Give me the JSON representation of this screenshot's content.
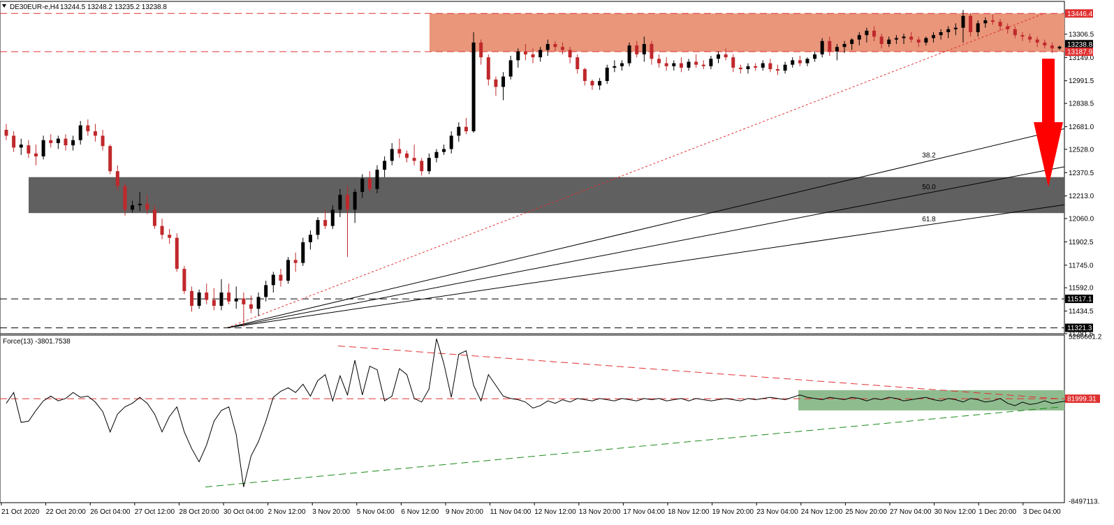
{
  "header": {
    "symbol_label": "DE30EUR-e,H4",
    "ohlc": "13244.5 13248.2 13235.2 13238.8"
  },
  "indicator": {
    "label": "Force(13) -3801.7538"
  },
  "colors": {
    "bull_candle": "#000000",
    "bear_candle": "#c0282b",
    "resistance_zone": "#e9967a",
    "support_zone": "#606060",
    "force_zone": "#8fbc8f",
    "arrow": "#ff0000",
    "dashed_red": "#e03030",
    "dashed_green": "#1a8a1a"
  },
  "chart_data": [
    {
      "type": "candlestick",
      "yaxis_ticks": [
        "13306.5",
        "13149.0",
        "12991.5",
        "12838.5",
        "12681.0",
        "12528.0",
        "12370.5",
        "12213.0",
        "12060.0",
        "11902.5",
        "11745.0",
        "11592.0",
        "11434.5",
        "11281.5"
      ],
      "ylim": [
        11281.5,
        13528.0
      ],
      "price_tags": [
        {
          "label": "13446.4",
          "value": 13446.4,
          "style": "red"
        },
        {
          "label": "13238.8",
          "value": 13238.8,
          "style": "black"
        },
        {
          "label": "13187.9",
          "value": 13187.9,
          "style": "red"
        },
        {
          "label": "11517.1",
          "value": 11517.1,
          "style": "black"
        },
        {
          "label": "11321.3",
          "value": 11321.3,
          "style": "black"
        }
      ],
      "xaxis_labels": [
        "21 Oct 2020",
        "22 Oct 20:00",
        "26 Oct 04:00",
        "27 Oct 12:00",
        "28 Oct 20:00",
        "30 Oct 04:00",
        "2 Nov 12:00",
        "3 Nov 20:00",
        "5 Nov 04:00",
        "6 Nov 12:00",
        "9 Nov 20:00",
        "11 Nov 04:00",
        "12 Nov 12:00",
        "13 Nov 20:00",
        "17 Nov 04:00",
        "18 Nov 12:00",
        "19 Nov 20:00",
        "23 Nov 04:00",
        "24 Nov 12:00",
        "25 Nov 20:00",
        "27 Nov 04:00",
        "30 Nov 12:00",
        "1 Dec 20:00",
        "3 Dec 04:00"
      ],
      "horizontal_levels": [
        13446.4,
        13187.9,
        11517.1,
        11321.3
      ],
      "resistance_zone": [
        13187.9,
        13446.4
      ],
      "support_zone": [
        12097.0,
        12340.0
      ],
      "fibonacci_fan": [
        {
          "label": "38.2",
          "level": 38.2
        },
        {
          "label": "50.0",
          "level": 50.0
        },
        {
          "label": "61.8",
          "level": 61.8
        }
      ],
      "candles": [
        [
          12660,
          12700,
          12590,
          12620
        ],
        [
          12620,
          12650,
          12510,
          12540
        ],
        [
          12540,
          12600,
          12490,
          12560
        ],
        [
          12555,
          12590,
          12470,
          12500
        ],
        [
          12500,
          12560,
          12420,
          12480
        ],
        [
          12480,
          12620,
          12460,
          12590
        ],
        [
          12590,
          12630,
          12540,
          12570
        ],
        [
          12570,
          12620,
          12530,
          12600
        ],
        [
          12600,
          12630,
          12520,
          12555
        ],
        [
          12555,
          12620,
          12520,
          12590
        ],
        [
          12590,
          12720,
          12560,
          12690
        ],
        [
          12690,
          12730,
          12620,
          12650
        ],
        [
          12650,
          12700,
          12580,
          12620
        ],
        [
          12620,
          12660,
          12520,
          12550
        ],
        [
          12550,
          12560,
          12360,
          12380
        ],
        [
          12380,
          12420,
          12250,
          12280
        ],
        [
          12280,
          12300,
          12080,
          12120
        ],
        [
          12120,
          12180,
          12100,
          12150
        ],
        [
          12150,
          12240,
          12110,
          12160
        ],
        [
          12160,
          12220,
          12090,
          12120
        ],
        [
          12120,
          12150,
          11990,
          12010
        ],
        [
          12010,
          12060,
          11920,
          11950
        ],
        [
          11950,
          11990,
          11890,
          11930
        ],
        [
          11930,
          11960,
          11700,
          11720
        ],
        [
          11720,
          11740,
          11550,
          11570
        ],
        [
          11570,
          11600,
          11430,
          11470
        ],
        [
          11470,
          11580,
          11450,
          11560
        ],
        [
          11560,
          11620,
          11480,
          11510
        ],
        [
          11510,
          11590,
          11440,
          11470
        ],
        [
          11470,
          11650,
          11440,
          11560
        ],
        [
          11560,
          11620,
          11480,
          11500
        ],
        [
          11500,
          11600,
          11450,
          11520
        ],
        [
          11520,
          11560,
          11330,
          11480
        ],
        [
          11480,
          11540,
          11420,
          11450
        ],
        [
          11450,
          11560,
          11400,
          11530
        ],
        [
          11530,
          11640,
          11500,
          11610
        ],
        [
          11610,
          11700,
          11560,
          11680
        ],
        [
          11680,
          11720,
          11600,
          11640
        ],
        [
          11640,
          11800,
          11620,
          11780
        ],
        [
          11780,
          11830,
          11700,
          11760
        ],
        [
          11760,
          11930,
          11740,
          11900
        ],
        [
          11900,
          11980,
          11850,
          11950
        ],
        [
          11950,
          12070,
          11920,
          12050
        ],
        [
          12050,
          12120,
          11990,
          12010
        ],
        [
          12010,
          12150,
          11990,
          12120
        ],
        [
          12120,
          12260,
          12070,
          12220
        ],
        [
          12220,
          12280,
          11800,
          12120
        ],
        [
          12120,
          12260,
          12030,
          12240
        ],
        [
          12240,
          12360,
          12200,
          12330
        ],
        [
          12330,
          12380,
          12240,
          12260
        ],
        [
          12260,
          12420,
          12230,
          12390
        ],
        [
          12390,
          12480,
          12340,
          12450
        ],
        [
          12450,
          12570,
          12420,
          12530
        ],
        [
          12530,
          12600,
          12470,
          12500
        ],
        [
          12500,
          12520,
          12440,
          12470
        ],
        [
          12470,
          12560,
          12420,
          12450
        ],
        [
          12450,
          12470,
          12350,
          12380
        ],
        [
          12380,
          12500,
          12360,
          12470
        ],
        [
          12470,
          12530,
          12440,
          12510
        ],
        [
          12510,
          12560,
          12490,
          12530
        ],
        [
          12530,
          12650,
          12500,
          12620
        ],
        [
          12620,
          12710,
          12580,
          12680
        ],
        [
          12680,
          12740,
          12630,
          12650
        ],
        [
          12650,
          13320,
          12640,
          13250
        ],
        [
          13250,
          13270,
          13100,
          13150
        ],
        [
          13150,
          13170,
          12960,
          13000
        ],
        [
          13000,
          13020,
          12890,
          12950
        ],
        [
          12950,
          13050,
          12860,
          13020
        ],
        [
          13020,
          13160,
          13000,
          13130
        ],
        [
          13130,
          13210,
          13080,
          13190
        ],
        [
          13190,
          13240,
          13130,
          13170
        ],
        [
          13170,
          13210,
          13110,
          13150
        ],
        [
          13150,
          13220,
          13120,
          13200
        ],
        [
          13200,
          13270,
          13160,
          13240
        ],
        [
          13240,
          13260,
          13190,
          13220
        ],
        [
          13220,
          13250,
          13170,
          13200
        ],
        [
          13200,
          13220,
          13110,
          13150
        ],
        [
          13150,
          13170,
          13040,
          13070
        ],
        [
          13070,
          13080,
          12960,
          12990
        ],
        [
          12990,
          13000,
          12930,
          12960
        ],
        [
          12960,
          13010,
          12930,
          12990
        ],
        [
          12990,
          13100,
          12970,
          13080
        ],
        [
          13080,
          13130,
          13050,
          13090
        ],
        [
          13090,
          13130,
          13060,
          13110
        ],
        [
          13110,
          13250,
          13090,
          13230
        ],
        [
          13230,
          13260,
          13150,
          13170
        ],
        [
          13170,
          13290,
          13120,
          13240
        ],
        [
          13240,
          13260,
          13100,
          13140
        ],
        [
          13140,
          13170,
          13080,
          13110
        ],
        [
          13110,
          13150,
          13060,
          13090
        ],
        [
          13090,
          13130,
          13060,
          13110
        ],
        [
          13110,
          13150,
          13050,
          13080
        ],
        [
          13080,
          13140,
          13060,
          13120
        ],
        [
          13120,
          13170,
          13080,
          13100
        ],
        [
          13100,
          13130,
          13070,
          13090
        ],
        [
          13090,
          13160,
          13070,
          13140
        ],
        [
          13140,
          13190,
          13110,
          13170
        ],
        [
          13170,
          13210,
          13130,
          13150
        ],
        [
          13150,
          13170,
          13050,
          13080
        ],
        [
          13080,
          13100,
          13040,
          13070
        ],
        [
          13070,
          13110,
          13040,
          13090
        ],
        [
          13090,
          13110,
          13060,
          13080
        ],
        [
          13080,
          13130,
          13060,
          13110
        ],
        [
          13110,
          13140,
          13050,
          13070
        ],
        [
          13070,
          13100,
          13030,
          13060
        ],
        [
          13060,
          13120,
          13040,
          13100
        ],
        [
          13100,
          13150,
          13080,
          13130
        ],
        [
          13130,
          13160,
          13090,
          13110
        ],
        [
          13110,
          13150,
          13090,
          13140
        ],
        [
          13140,
          13190,
          13120,
          13170
        ],
        [
          13170,
          13280,
          13150,
          13260
        ],
        [
          13260,
          13290,
          13160,
          13190
        ],
        [
          13190,
          13240,
          13130,
          13220
        ],
        [
          13220,
          13260,
          13180,
          13240
        ],
        [
          13240,
          13280,
          13200,
          13270
        ],
        [
          13270,
          13320,
          13230,
          13300
        ],
        [
          13300,
          13350,
          13250,
          13330
        ],
        [
          13330,
          13360,
          13260,
          13290
        ],
        [
          13290,
          13310,
          13210,
          13240
        ],
        [
          13240,
          13290,
          13220,
          13270
        ],
        [
          13270,
          13300,
          13240,
          13280
        ],
        [
          13280,
          13310,
          13240,
          13290
        ],
        [
          13290,
          13320,
          13250,
          13270
        ],
        [
          13270,
          13290,
          13220,
          13250
        ],
        [
          13250,
          13290,
          13230,
          13280
        ],
        [
          13280,
          13320,
          13250,
          13300
        ],
        [
          13300,
          13340,
          13270,
          13320
        ],
        [
          13320,
          13360,
          13280,
          13340
        ],
        [
          13340,
          13380,
          13300,
          13350
        ],
        [
          13350,
          13470,
          13250,
          13430
        ],
        [
          13430,
          13450,
          13290,
          13320
        ],
        [
          13320,
          13400,
          13290,
          13380
        ],
        [
          13380,
          13420,
          13350,
          13400
        ],
        [
          13400,
          13440,
          13370,
          13390
        ],
        [
          13390,
          13410,
          13330,
          13360
        ],
        [
          13360,
          13380,
          13310,
          13340
        ],
        [
          13340,
          13360,
          13280,
          13300
        ],
        [
          13300,
          13320,
          13260,
          13290
        ],
        [
          13290,
          13310,
          13250,
          13270
        ],
        [
          13270,
          13290,
          13220,
          13250
        ],
        [
          13250,
          13270,
          13210,
          13230
        ],
        [
          13230,
          13250,
          13180,
          13210
        ],
        [
          13210,
          13230,
          13200,
          13222
        ],
        [
          13222,
          13250,
          13215,
          13240
        ]
      ]
    },
    {
      "type": "line",
      "name": "Force(13)",
      "yaxis_ticks": [
        "5286661.2",
        "81999.31",
        "-8497113."
      ],
      "ylim": [
        -8497113,
        5286661.2
      ],
      "zero_level": 81999.31,
      "values": [
        -300000,
        600000,
        -1900000,
        -1800000,
        -900000,
        -100000,
        300000,
        -100000,
        100000,
        600000,
        200000,
        300000,
        -200000,
        -1000000,
        -2700000,
        -1200000,
        -600000,
        -300000,
        200000,
        -300000,
        -1200000,
        -2700000,
        -1400000,
        -600000,
        -2700000,
        -4100000,
        -5200000,
        -3800000,
        -1800000,
        -900000,
        -600000,
        -2900000,
        -7300000,
        -4700000,
        -3500000,
        -1800000,
        200000,
        700000,
        1000000,
        600000,
        1300000,
        300000,
        1600000,
        2100000,
        -100000,
        2000000,
        400000,
        3300000,
        400000,
        2800000,
        2500000,
        -100000,
        300000,
        2600000,
        2100000,
        100000,
        -200000,
        900000,
        5100000,
        3000000,
        200000,
        3800000,
        4100000,
        1200000,
        -100000,
        2100000,
        1200000,
        300000,
        100000,
        0,
        -200000,
        -700000,
        -500000,
        -100000,
        -300000,
        0,
        -200000,
        100000,
        0,
        -100000,
        100000,
        0,
        -100000,
        100000,
        0,
        -100000,
        100000,
        0,
        100000,
        -100000,
        0,
        100000,
        -100000,
        100000,
        0,
        -100000,
        0,
        100000,
        0,
        -100000,
        100000,
        0,
        100000,
        200000,
        100000,
        0,
        200000,
        400000,
        200000,
        100000,
        0,
        200000,
        100000,
        0,
        200000,
        100000,
        -100000,
        100000,
        0,
        200000,
        100000,
        -100000,
        0,
        100000,
        200000,
        0,
        -100000,
        100000,
        0,
        -200000,
        100000,
        0,
        -200000,
        -100000,
        100000,
        -300000,
        -500000,
        -200000,
        -400000,
        -300000,
        -100000,
        -300000,
        -200000,
        -100000
      ]
    }
  ]
}
